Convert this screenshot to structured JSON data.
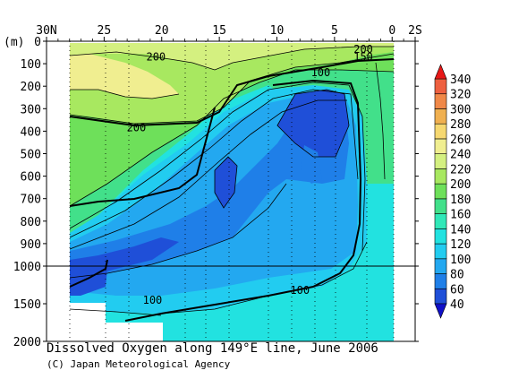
{
  "chart_data": {
    "type": "heatmap",
    "title": "Dissolved Oxygen along 149°E line, June 2006",
    "credit": "(C) Japan Meteorological Agency",
    "x_ticks": [
      "30N",
      "25",
      "20",
      "15",
      "10",
      "5",
      "0",
      "2S"
    ],
    "xlim": [
      30,
      -2
    ],
    "y_unit_label": "(m)",
    "y_ticks_upper": [
      0,
      100,
      200,
      300,
      400,
      500,
      600,
      700,
      800,
      900,
      1000
    ],
    "y_ticks_lower": [
      1500,
      2000
    ],
    "ylim": [
      0,
      2000
    ],
    "y_break": 1000,
    "colorbar": {
      "levels": [
        40,
        60,
        80,
        100,
        120,
        140,
        160,
        180,
        200,
        220,
        240,
        260,
        280,
        300,
        320,
        340
      ],
      "colors": [
        "#1f4fd8",
        "#1f7fe8",
        "#23a8f0",
        "#22ccf0",
        "#22e2e0",
        "#30e8b8",
        "#42e08a",
        "#6ee05a",
        "#a8e860",
        "#d4f080",
        "#f0ee90",
        "#f6d870",
        "#f0b050",
        "#f08848",
        "#ee6040",
        "#e83828"
      ],
      "under_color": "#1010c8",
      "over_color": "#e81818"
    },
    "contour_labels": [
      {
        "text": "200",
        "lat": 20.5,
        "depth": 70
      },
      {
        "text": "200",
        "lat": 2.5,
        "depth": 35
      },
      {
        "text": "150",
        "lat": 2.5,
        "depth": 70
      },
      {
        "text": "100",
        "lat": 6.2,
        "depth": 140
      },
      {
        "text": "200",
        "lat": 22.2,
        "depth": 385
      },
      {
        "text": "100",
        "lat": 20.8,
        "depth": 1455
      },
      {
        "text": "100",
        "lat": 8.0,
        "depth": 1320
      }
    ],
    "grid": "dotted station lines"
  }
}
